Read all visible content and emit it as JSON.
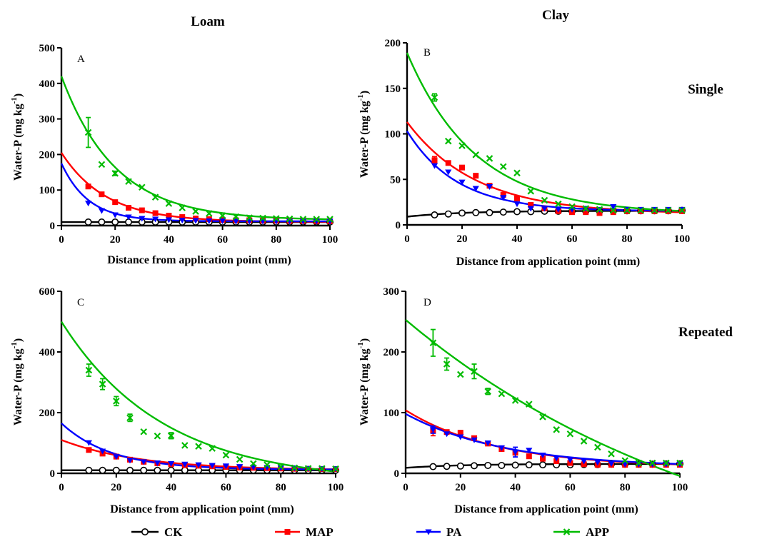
{
  "column_titles": [
    "Loam",
    "Clay"
  ],
  "row_titles": [
    "Single",
    "Repeated"
  ],
  "legend": [
    {
      "name": "CK",
      "color": "#000000",
      "marker": "circle"
    },
    {
      "name": "MAP",
      "color": "#ff0000",
      "marker": "square"
    },
    {
      "name": "PA",
      "color": "#0000ff",
      "marker": "triangle-down"
    },
    {
      "name": "APP",
      "color": "#00bb00",
      "marker": "x"
    }
  ],
  "chart_data": [
    {
      "type": "scatter",
      "panel": "A",
      "xlabel": "Distance from application point (mm)",
      "ylabel": "Water-P (mg kg-1)",
      "xlim": [
        0,
        100
      ],
      "ylim": [
        0,
        500
      ],
      "xticks": [
        0,
        20,
        40,
        60,
        80,
        100
      ],
      "yticks": [
        0,
        100,
        200,
        300,
        400,
        500
      ],
      "x": [
        10,
        15,
        20,
        25,
        30,
        35,
        40,
        45,
        50,
        55,
        60,
        65,
        70,
        75,
        80,
        85,
        90,
        95,
        100
      ],
      "series": [
        {
          "name": "CK",
          "values": [
            10,
            10,
            10,
            10,
            10,
            10,
            10,
            10,
            10,
            10,
            10,
            10,
            10,
            10,
            10,
            10,
            10,
            10,
            10
          ],
          "fit": {
            "kind": "flat",
            "y0": 10
          }
        },
        {
          "name": "MAP",
          "values": [
            110,
            88,
            66,
            50,
            43,
            35,
            28,
            24,
            20,
            18,
            16,
            15,
            15,
            14,
            14,
            13,
            13,
            12,
            12
          ],
          "fit": {
            "kind": "exp",
            "y0": 205,
            "yinf": 10,
            "k": 0.06
          }
        },
        {
          "name": "PA",
          "values": [
            63,
            42,
            30,
            24,
            20,
            18,
            16,
            15,
            14,
            13,
            13,
            12,
            12,
            12,
            12,
            12,
            12,
            12,
            12
          ],
          "fit": {
            "kind": "exp",
            "y0": 175,
            "yinf": 12,
            "k": 0.1
          }
        },
        {
          "name": "APP",
          "values": [
            262,
            172,
            147,
            124,
            108,
            80,
            62,
            50,
            40,
            34,
            28,
            25,
            22,
            21,
            20,
            19,
            18,
            18,
            18
          ],
          "err": [
            42,
            0,
            6,
            0,
            0,
            0,
            0,
            0,
            0,
            0,
            0,
            0,
            0,
            0,
            0,
            0,
            0,
            0,
            0
          ],
          "fit": {
            "kind": "exp",
            "y0": 420,
            "yinf": 15,
            "k": 0.05
          }
        }
      ]
    },
    {
      "type": "scatter",
      "panel": "B",
      "xlabel": "Distance from application point (mm)",
      "ylabel": "Water-P (mg kg-1)",
      "xlim": [
        0,
        100
      ],
      "ylim": [
        0,
        200
      ],
      "xticks": [
        0,
        20,
        40,
        60,
        80,
        100
      ],
      "yticks": [
        0,
        50,
        100,
        150,
        200
      ],
      "x": [
        10,
        15,
        20,
        25,
        30,
        35,
        40,
        45,
        50,
        55,
        60,
        65,
        70,
        75,
        80,
        85,
        90,
        95,
        100
      ],
      "series": [
        {
          "name": "CK",
          "values": [
            11,
            12,
            13,
            13.5,
            13.5,
            14,
            14.5,
            14.5,
            15,
            15,
            15,
            15,
            15,
            15,
            15.5,
            15.5,
            15.5,
            15.5,
            16
          ],
          "fit": {
            "kind": "exp",
            "y0": 9,
            "yinf": 15.5,
            "k": 0.05
          }
        },
        {
          "name": "MAP",
          "values": [
            71,
            68,
            63,
            54,
            43,
            33,
            29,
            22,
            18,
            15,
            14,
            14,
            13,
            14,
            15,
            15,
            15,
            15,
            15
          ],
          "err": [
            4,
            0,
            0,
            0,
            0,
            0,
            0,
            0,
            0,
            0,
            0,
            0,
            0,
            0,
            0,
            0,
            0,
            0,
            0
          ],
          "fit": {
            "kind": "exp",
            "y0": 113,
            "yinf": 12,
            "k": 0.04
          }
        },
        {
          "name": "PA",
          "values": [
            65,
            58,
            47,
            40,
            42,
            30,
            23,
            18,
            18,
            17,
            17,
            18,
            17,
            20,
            17,
            17,
            17,
            17,
            17
          ],
          "fit": {
            "kind": "exp",
            "y0": 103,
            "yinf": 15,
            "k": 0.055
          }
        },
        {
          "name": "APP",
          "values": [
            140,
            92,
            87,
            77,
            73,
            64,
            57,
            37,
            27,
            23,
            20,
            18,
            17,
            16,
            16,
            16,
            16,
            16,
            16
          ],
          "err": [
            4,
            0,
            0,
            0,
            0,
            0,
            0,
            0,
            0,
            0,
            0,
            0,
            0,
            0,
            0,
            0,
            0,
            0,
            0
          ],
          "fit": {
            "kind": "exp",
            "y0": 189,
            "yinf": 12,
            "k": 0.04
          }
        }
      ]
    },
    {
      "type": "scatter",
      "panel": "C",
      "xlabel": "Distance from application point (mm)",
      "ylabel": "Water-P (mg kg-1)",
      "xlim": [
        0,
        100
      ],
      "ylim": [
        0,
        600
      ],
      "xticks": [
        0,
        20,
        40,
        60,
        80,
        100
      ],
      "yticks": [
        0,
        200,
        400,
        600
      ],
      "x": [
        10,
        15,
        20,
        25,
        30,
        35,
        40,
        45,
        50,
        55,
        60,
        65,
        70,
        75,
        80,
        85,
        90,
        95,
        100
      ],
      "series": [
        {
          "name": "CK",
          "values": [
            10,
            10,
            10,
            10,
            10,
            10,
            10,
            10,
            10,
            10,
            10,
            10,
            10,
            10,
            10,
            10,
            10,
            10,
            10
          ],
          "fit": {
            "kind": "flat",
            "y0": 10
          }
        },
        {
          "name": "MAP",
          "values": [
            77,
            65,
            55,
            45,
            38,
            33,
            30,
            27,
            25,
            23,
            21,
            19,
            18,
            17,
            16,
            15,
            15,
            14,
            14
          ],
          "fit": {
            "kind": "exp",
            "y0": 110,
            "yinf": 10,
            "k": 0.035
          }
        },
        {
          "name": "PA",
          "values": [
            101,
            73,
            55,
            43,
            38,
            34,
            32,
            30,
            28,
            26,
            24,
            22,
            20,
            19,
            18,
            17,
            16,
            15,
            15
          ],
          "fit": {
            "kind": "exp",
            "y0": 165,
            "yinf": 12,
            "k": 0.055
          }
        },
        {
          "name": "APP",
          "values": [
            340,
            294,
            238,
            183,
            137,
            123,
            124,
            92,
            89,
            82,
            60,
            46,
            32,
            28,
            22,
            18,
            16,
            16,
            15
          ],
          "err": [
            20,
            18,
            15,
            12,
            0,
            0,
            10,
            0,
            0,
            0,
            0,
            0,
            0,
            0,
            0,
            0,
            0,
            0,
            0
          ],
          "fit": {
            "kind": "exp",
            "y0": 500,
            "yinf": -30,
            "k": 0.027
          }
        }
      ]
    },
    {
      "type": "scatter",
      "panel": "D",
      "xlabel": "Distance from application point (mm)",
      "ylabel": "Water-P (mg kg-1)",
      "xlim": [
        0,
        100
      ],
      "ylim": [
        0,
        300
      ],
      "xticks": [
        0,
        20,
        40,
        60,
        80,
        100
      ],
      "yticks": [
        0,
        100,
        200,
        300
      ],
      "x": [
        10,
        15,
        20,
        25,
        30,
        35,
        40,
        45,
        50,
        55,
        60,
        65,
        70,
        75,
        80,
        85,
        90,
        95,
        100
      ],
      "series": [
        {
          "name": "CK",
          "values": [
            11,
            11.5,
            12,
            12.5,
            13,
            13,
            13.5,
            14,
            14,
            14,
            14,
            14.5,
            14.5,
            15,
            15,
            15,
            15,
            15.5,
            15.5
          ],
          "fit": {
            "kind": "exp",
            "y0": 9,
            "yinf": 15.5,
            "k": 0.05
          }
        },
        {
          "name": "MAP",
          "values": [
            70,
            68,
            67,
            58,
            49,
            40,
            34,
            28,
            24,
            20,
            17,
            15,
            14,
            14,
            14,
            14,
            14,
            14,
            14
          ],
          "err": [
            8,
            0,
            0,
            0,
            0,
            0,
            0,
            0,
            0,
            0,
            0,
            0,
            0,
            0,
            0,
            0,
            0,
            0,
            0
          ],
          "fit": {
            "kind": "exp",
            "y0": 104,
            "yinf": 10,
            "k": 0.03
          }
        },
        {
          "name": "PA",
          "values": [
            72,
            65,
            60,
            55,
            50,
            42,
            35,
            38,
            30,
            25,
            22,
            20,
            18,
            16,
            15,
            15,
            15,
            15,
            15
          ],
          "err": [
            6,
            0,
            0,
            0,
            0,
            0,
            8,
            0,
            0,
            0,
            0,
            0,
            0,
            0,
            0,
            0,
            0,
            0,
            0
          ],
          "fit": {
            "kind": "exp",
            "y0": 98,
            "yinf": 10,
            "k": 0.028
          }
        },
        {
          "name": "APP",
          "values": [
            215,
            180,
            163,
            168,
            135,
            131,
            120,
            114,
            93,
            72,
            65,
            53,
            43,
            32,
            21,
            17,
            17,
            17,
            17
          ],
          "err": [
            22,
            10,
            0,
            12,
            5,
            0,
            0,
            0,
            0,
            0,
            0,
            0,
            0,
            0,
            0,
            0,
            0,
            0,
            0
          ],
          "fit": {
            "kind": "exp",
            "y0": 253,
            "yinf": -200,
            "k": 0.0084
          }
        }
      ]
    }
  ]
}
